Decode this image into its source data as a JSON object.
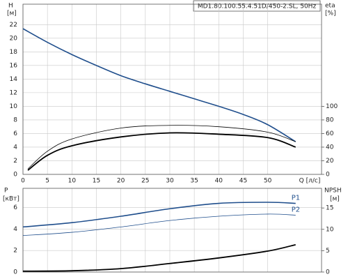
{
  "chart_data": [
    {
      "type": "line",
      "title": "MD1.80.100.55.4.51D/450-2.SL, 50Hz",
      "ylabel": "H",
      "yunit": "[м]",
      "y2label": "eta",
      "y2unit": "[%]",
      "xlabel": "Q [л/с]",
      "xlim": [
        0,
        61
      ],
      "xticks": [
        0,
        5,
        10,
        15,
        20,
        25,
        30,
        35,
        40,
        45,
        50
      ],
      "ylim": [
        0,
        25
      ],
      "yticks": [
        0,
        2,
        4,
        6,
        8,
        10,
        12,
        14,
        16,
        18,
        20,
        22
      ],
      "y2lim": [
        0,
        250
      ],
      "y2ticks": [
        0,
        20,
        40,
        60,
        80,
        100
      ],
      "grid": true,
      "series": [
        {
          "color": "#1f4e8c",
          "width": 1.6,
          "x": [
            0,
            5,
            10,
            15,
            20,
            25,
            30,
            35,
            40,
            45,
            50,
            55.7
          ],
          "values": [
            21.4,
            19.4,
            17.6,
            16.0,
            14.5,
            13.3,
            12.2,
            11.1,
            10.0,
            8.8,
            7.3,
            4.8
          ]
        },
        {
          "color": "#000000",
          "width": 0.8,
          "axis": "y2",
          "x": [
            1,
            5,
            10,
            20,
            30,
            40,
            50,
            55.7
          ],
          "values": [
            8,
            34,
            52,
            68,
            72,
            70,
            62,
            48
          ]
        },
        {
          "color": "#000000",
          "width": 1.8,
          "axis": "y2",
          "x": [
            1,
            5,
            10,
            20,
            30,
            40,
            50,
            55.7
          ],
          "values": [
            6,
            28,
            42,
            55,
            61,
            59,
            54,
            40
          ]
        }
      ]
    },
    {
      "type": "line",
      "ylabel": "P",
      "yunit": "[кВт]",
      "y2label": "NPSH",
      "y2unit": "[м]",
      "xlim": [
        0,
        61
      ],
      "xticks": [
        0,
        5,
        10,
        15,
        20,
        25,
        30,
        35,
        40,
        45,
        50
      ],
      "ylim": [
        0,
        7.8
      ],
      "yticks": [
        0,
        2,
        4,
        6
      ],
      "y2lim": [
        0,
        19.6
      ],
      "y2ticks": [
        0,
        5,
        10,
        15
      ],
      "grid": true,
      "series": [
        {
          "name": "P1",
          "color": "#1f4e8c",
          "width": 1.6,
          "x": [
            0,
            10,
            20,
            30,
            40,
            50,
            55.7
          ],
          "values": [
            4.2,
            4.6,
            5.2,
            5.9,
            6.4,
            6.5,
            6.4
          ]
        },
        {
          "name": "P2",
          "color": "#1f4e8c",
          "width": 0.8,
          "x": [
            0,
            10,
            20,
            30,
            40,
            50,
            55.7
          ],
          "values": [
            3.4,
            3.7,
            4.2,
            4.8,
            5.2,
            5.4,
            5.3
          ]
        },
        {
          "color": "#000000",
          "width": 1.8,
          "axis": "y2",
          "x": [
            0,
            10,
            20,
            30,
            40,
            50,
            55.7
          ],
          "values": [
            0.2,
            0.3,
            0.8,
            2.0,
            3.3,
            4.9,
            6.4
          ]
        }
      ]
    }
  ]
}
